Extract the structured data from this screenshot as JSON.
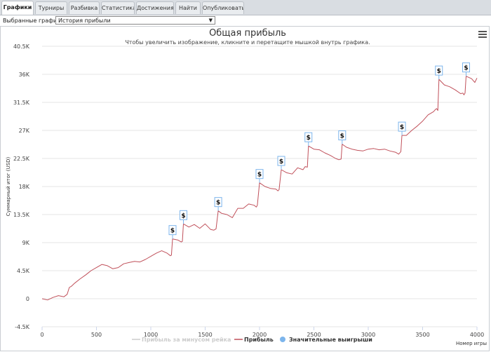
{
  "tabs": [
    {
      "label": "Графики",
      "active": true
    },
    {
      "label": "Турниры",
      "active": false
    },
    {
      "label": "Разбивка",
      "active": false
    },
    {
      "label": "Статистика",
      "active": false
    },
    {
      "label": "Достижения",
      "active": false
    },
    {
      "label": "Найти",
      "active": false
    },
    {
      "label": "Опубликовать",
      "active": false
    }
  ],
  "selector": {
    "label": "Выбранные графики:",
    "value": "История прибыли"
  },
  "menu_icon": "hamburger-menu-icon",
  "chart_data": {
    "type": "line",
    "title": "Общая прибыль",
    "subtitle": "Чтобы увеличить изображение, кликните и перетащите мышкой внутрь графика.",
    "xlabel": "Номер игры",
    "ylabel": "Суммарный итог (USD)",
    "xlim": [
      0,
      4000
    ],
    "ylim": [
      -4500,
      40500
    ],
    "xticks": [
      0,
      500,
      1000,
      1500,
      2000,
      2500,
      3000,
      3500,
      4000
    ],
    "yticks": [
      -4500,
      0,
      4500,
      9000,
      13500,
      18000,
      22500,
      27000,
      31500,
      36000,
      40500
    ],
    "ytick_labels": [
      "-4.5K",
      "0",
      "4.5K",
      "9K",
      "13.5K",
      "18K",
      "22.5K",
      "27K",
      "31.5K",
      "36K",
      "40.5K"
    ],
    "legend": [
      {
        "name": "Прибыль за минусом рейка",
        "color": "#cccccc",
        "disabled": true
      },
      {
        "name": "Прибыль",
        "color": "#c0505a",
        "disabled": false
      },
      {
        "name": "Значительные выигрыши",
        "color": "#7cb5ec",
        "disabled": false,
        "marker": "circle"
      }
    ],
    "series": [
      {
        "name": "Прибыль",
        "color": "#c0505a",
        "x": [
          0,
          50,
          100,
          150,
          200,
          230,
          250,
          270,
          300,
          350,
          400,
          450,
          500,
          550,
          600,
          650,
          700,
          750,
          800,
          850,
          900,
          950,
          1000,
          1050,
          1100,
          1150,
          1180,
          1190,
          1200,
          1250,
          1280,
          1290,
          1300,
          1350,
          1400,
          1450,
          1500,
          1550,
          1580,
          1600,
          1620,
          1650,
          1700,
          1750,
          1800,
          1850,
          1900,
          1950,
          1970,
          1980,
          2000,
          2050,
          2100,
          2150,
          2170,
          2180,
          2200,
          2250,
          2300,
          2350,
          2400,
          2420,
          2440,
          2450,
          2500,
          2550,
          2600,
          2650,
          2700,
          2730,
          2750,
          2760,
          2800,
          2850,
          2900,
          2950,
          3000,
          3050,
          3100,
          3150,
          3200,
          3250,
          3280,
          3300,
          3310,
          3350,
          3400,
          3450,
          3500,
          3550,
          3600,
          3620,
          3630,
          3640,
          3650,
          3700,
          3750,
          3800,
          3850,
          3870,
          3880,
          3890,
          3900,
          3950,
          3980,
          4000
        ],
        "y": [
          0,
          -200,
          200,
          500,
          300,
          700,
          1800,
          2000,
          2500,
          3200,
          3800,
          4500,
          5000,
          5500,
          5300,
          4800,
          5000,
          5600,
          5800,
          6000,
          5900,
          6300,
          6800,
          7300,
          7700,
          7300,
          6900,
          7000,
          9600,
          9400,
          9100,
          9200,
          12000,
          11500,
          11900,
          11300,
          12000,
          11100,
          11000,
          11200,
          14100,
          13700,
          13500,
          13000,
          14500,
          14500,
          15200,
          15000,
          14700,
          15000,
          18600,
          18000,
          17700,
          17600,
          17300,
          17500,
          20700,
          20200,
          20000,
          21000,
          20700,
          21200,
          21100,
          24500,
          24000,
          23900,
          23400,
          23000,
          22500,
          22300,
          22400,
          24800,
          24300,
          24000,
          23800,
          23700,
          24000,
          24100,
          23900,
          24000,
          23700,
          23500,
          23200,
          23600,
          26200,
          26200,
          27000,
          27700,
          28500,
          29500,
          30000,
          30400,
          30500,
          30200,
          35200,
          34300,
          34000,
          33500,
          32900,
          33000,
          32700,
          33000,
          35700,
          35300,
          34700,
          35400
        ]
      }
    ],
    "big_wins": [
      {
        "x": 1200,
        "y": 9600
      },
      {
        "x": 1300,
        "y": 12000
      },
      {
        "x": 1620,
        "y": 14100
      },
      {
        "x": 2000,
        "y": 18600
      },
      {
        "x": 2200,
        "y": 20700
      },
      {
        "x": 2450,
        "y": 24500
      },
      {
        "x": 2760,
        "y": 24800
      },
      {
        "x": 3310,
        "y": 26200
      },
      {
        "x": 3650,
        "y": 35200
      },
      {
        "x": 3900,
        "y": 35700
      }
    ],
    "big_win_label": "$",
    "grid": true,
    "legend_position": "bottom"
  }
}
